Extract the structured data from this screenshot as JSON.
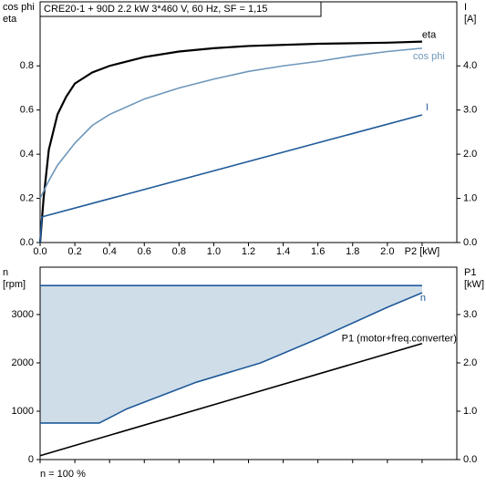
{
  "chart_data": [
    {
      "type": "line",
      "title": "CRE20-1 + 90D   2.2 kW   3*460 V, 60 Hz, SF = 1,15",
      "ylabel": [
        "cos phi",
        "eta"
      ],
      "y2label": [
        "I",
        "[A]"
      ],
      "xlim": [
        0,
        2.4
      ],
      "xticks": [
        {
          "value": 0,
          "label": "0.0"
        },
        0.2,
        0.4,
        0.6,
        0.8,
        {
          "value": 1,
          "label": "1.0"
        },
        1.2,
        1.4,
        1.6,
        1.8,
        {
          "value": 2,
          "label": "2.0"
        },
        {
          "value": 2.2,
          "label": "P2 [kW]"
        }
      ],
      "ylim": [
        0,
        1.09
      ],
      "yticks": [
        {
          "value": 0,
          "label": "0.0"
        },
        0.2,
        0.4,
        0.6,
        0.8
      ],
      "y2lim": [
        0,
        5.45
      ],
      "y2ticks": [
        {
          "value": 0,
          "label": "0.0"
        },
        {
          "value": 1,
          "label": "1.0"
        },
        {
          "value": 2,
          "label": "2.0"
        },
        {
          "value": 3,
          "label": "3.0"
        },
        {
          "value": 4,
          "label": "4.0"
        }
      ],
      "series": [
        {
          "name": "eta",
          "color": "#000000",
          "x": [
            0,
            0.02,
            0.05,
            0.1,
            0.15,
            0.2,
            0.3,
            0.4,
            0.6,
            0.8,
            1.0,
            1.2,
            1.6,
            2.0,
            2.2
          ],
          "values": [
            0,
            0.2,
            0.42,
            0.58,
            0.66,
            0.72,
            0.77,
            0.8,
            0.84,
            0.865,
            0.88,
            0.89,
            0.9,
            0.905,
            0.91
          ]
        },
        {
          "name": "cos phi",
          "color": "#6e97bb",
          "x": [
            0,
            0.05,
            0.1,
            0.2,
            0.3,
            0.4,
            0.6,
            0.8,
            1.0,
            1.2,
            1.4,
            1.6,
            1.8,
            2.0,
            2.2
          ],
          "values": [
            0.2,
            0.28,
            0.35,
            0.45,
            0.53,
            0.58,
            0.65,
            0.7,
            0.74,
            0.775,
            0.8,
            0.82,
            0.845,
            0.865,
            0.88
          ]
        },
        {
          "name": "I",
          "color": "#1f5a99",
          "axis": "y2",
          "x": [
            0,
            0.01,
            2.2
          ],
          "values": [
            0,
            0.58,
            2.89
          ]
        }
      ]
    },
    {
      "type": "line",
      "ylabel": [
        "n",
        "[rpm]"
      ],
      "y2label": [
        "P1",
        "[kW]"
      ],
      "footnote": "n = 100 %",
      "xlim": [
        0,
        2.4
      ],
      "xticks": [
        0,
        0.2,
        0.4,
        0.6,
        0.8,
        1,
        1.2,
        1.4,
        1.6,
        1.8,
        2,
        2.2
      ],
      "ylim": [
        0,
        3980
      ],
      "yticks": [
        0,
        1000,
        2000,
        3000
      ],
      "y2lim": [
        0,
        3.98
      ],
      "y2ticks": [
        {
          "value": 0,
          "label": "0.0"
        },
        {
          "value": 1,
          "label": "1.0"
        },
        {
          "value": 2,
          "label": "2.0"
        },
        {
          "value": 3,
          "label": "3.0"
        }
      ],
      "fill_between": [
        0,
        1
      ],
      "fill_color": "#cfdde9",
      "series": [
        {
          "color": "#1f5a99",
          "x": [
            0,
            2.2
          ],
          "values": [
            3600,
            3600
          ]
        },
        {
          "name": "n",
          "color": "#1f5a99",
          "x": [
            0,
            0.34,
            0.5,
            0.9,
            1.27,
            1.6,
            2.0,
            2.2
          ],
          "values": [
            755,
            755,
            1050,
            1600,
            2000,
            2500,
            3150,
            3450
          ]
        },
        {
          "name": "P1 (motor+freq.converter)",
          "color": "#000000",
          "axis": "y2",
          "x": [
            0,
            2.2
          ],
          "values": [
            0.08,
            2.4
          ]
        }
      ]
    }
  ]
}
